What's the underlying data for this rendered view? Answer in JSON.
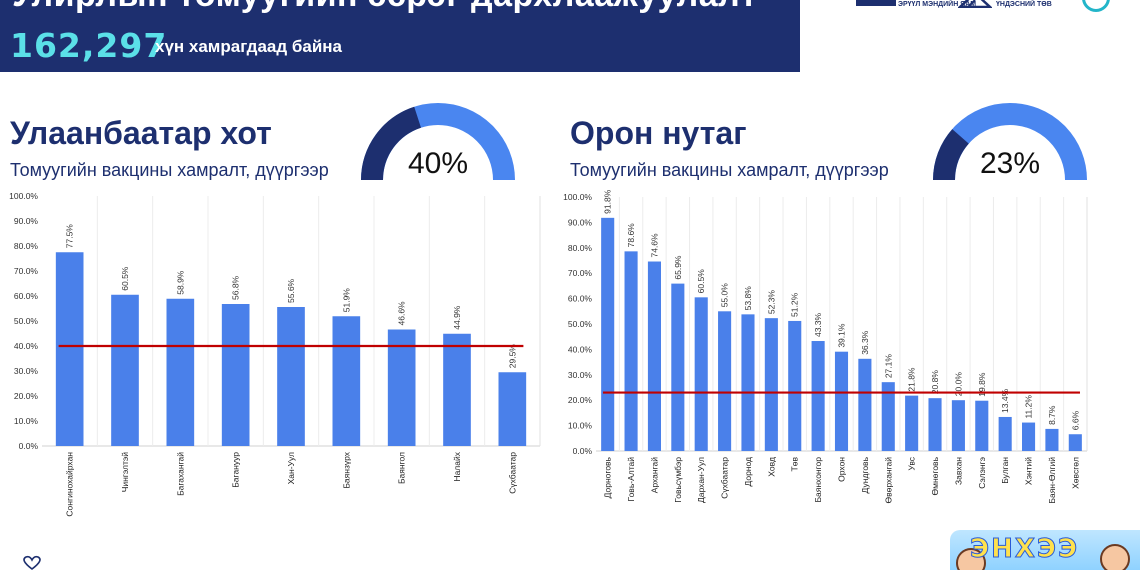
{
  "banner": {
    "title": "Улирлын томуугийн эсрэг дархлаажуулалт",
    "count": "162,297",
    "count_text": "хүн хамрагдаад байна"
  },
  "logos": {
    "ministry_text": "ЭРҮҮЛ МЭНДИЙН ЯАМ",
    "center_text": "ҮНДЭСНИЙ ТӨВ"
  },
  "mascot": {
    "text": "ЭНХЭЭ"
  },
  "colors": {
    "bar": "#4a80ea",
    "threshold": "#c00000",
    "banner": "#1d2f6f",
    "gauge_light": "#4a86f0",
    "gauge_dark": "#1d2f6f"
  },
  "left": {
    "title": "Улаанбаатар хот",
    "subtitle": "Томуугийн вакцины хамралт, дүүргээр",
    "gauge_label": "40%",
    "gauge_value": 40
  },
  "right": {
    "title": "Орон нутаг",
    "subtitle": "Томуугийн вакцины хамралт, дүүргээр",
    "gauge_label": "23%",
    "gauge_value": 23
  },
  "chart_data": [
    {
      "type": "bar",
      "categories": [
        "Сонгинохайрхан",
        "Чингэлтэй",
        "Багахангай",
        "Багануур",
        "Хан-Уул",
        "Баянзүрх",
        "Баянгол",
        "Налайх",
        "Сүхбаатар"
      ],
      "values": [
        77.5,
        60.5,
        58.9,
        56.8,
        55.6,
        51.9,
        46.6,
        44.9,
        29.5
      ],
      "value_labels": [
        "77.5%",
        "60.5%",
        "58.9%",
        "56.8%",
        "55.6%",
        "51.9%",
        "46.6%",
        "44.9%",
        "29.5%"
      ],
      "ylim": [
        0,
        100
      ],
      "yticks": [
        "0.0%",
        "10.0%",
        "20.0%",
        "30.0%",
        "40.0%",
        "50.0%",
        "60.0%",
        "70.0%",
        "80.0%",
        "90.0%",
        "100.0%"
      ],
      "reference_line": 40,
      "grid": false
    },
    {
      "type": "bar",
      "categories": [
        "Дорноговь",
        "Говь-Алтай",
        "Архангай",
        "Говьсүмбэр",
        "Дархан-Уул",
        "Сүхбаатар",
        "Дорнод",
        "Ховд",
        "Төв",
        "Баянхонгор",
        "Орхон",
        "Дундговь",
        "Өвөрхангай",
        "Увс",
        "Өмнөговь",
        "Завхан",
        "Сэлэнгэ",
        "Булган",
        "Хэнтий",
        "Баян-Өлгий",
        "Хөвсгөл"
      ],
      "values": [
        91.8,
        78.6,
        74.6,
        65.9,
        60.5,
        55.0,
        53.8,
        52.3,
        51.2,
        43.3,
        39.1,
        36.3,
        27.1,
        21.8,
        20.8,
        20.0,
        19.8,
        13.4,
        11.2,
        8.7,
        6.6
      ],
      "value_labels": [
        "91.8%",
        "78.6%",
        "74.6%",
        "65.9%",
        "60.5%",
        "55.0%",
        "53.8%",
        "52.3%",
        "51.2%",
        "43.3%",
        "39.1%",
        "36.3%",
        "27.1%",
        "21.8%",
        "20.8%",
        "20.0%",
        "19.8%",
        "13.4%",
        "11.2%",
        "8.7%",
        "6.6%"
      ],
      "ylim": [
        0,
        100
      ],
      "yticks": [
        "0.0%",
        "10.0%",
        "20.0%",
        "30.0%",
        "40.0%",
        "50.0%",
        "60.0%",
        "70.0%",
        "80.0%",
        "90.0%",
        "100.0%"
      ],
      "reference_line": 23,
      "grid": false
    }
  ]
}
